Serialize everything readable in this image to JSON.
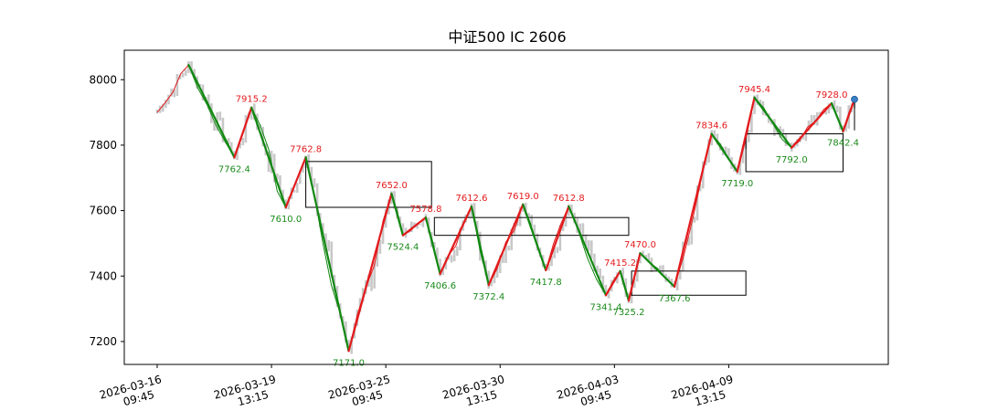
{
  "chart_data": {
    "type": "line",
    "title": "中证500 IC 2606",
    "xlabel": "",
    "ylabel": "",
    "ylim": [
      7130,
      8090
    ],
    "yticks": [
      7200,
      7400,
      7600,
      7800,
      8000
    ],
    "grid": false,
    "x_tick_labels": [
      {
        "date": "2026-03-16",
        "time": "09:45",
        "bar_index": 0
      },
      {
        "date": "2026-03-19",
        "time": "13:15",
        "bar_index": 40
      },
      {
        "date": "2026-03-25",
        "time": "09:45",
        "bar_index": 80
      },
      {
        "date": "2026-03-30",
        "time": "13:15",
        "bar_index": 120
      },
      {
        "date": "2026-04-03",
        "time": "09:45",
        "bar_index": 160
      },
      {
        "date": "2026-04-09",
        "time": "13:15",
        "bar_index": 200
      }
    ],
    "bar_count": 245,
    "colors": {
      "price": "#c8c8c8",
      "up_stroke": "#e31a1c",
      "down_stroke": "#118811",
      "box": "#000000",
      "last_point": "#3b7fc4"
    },
    "pivots": [
      {
        "idx": 11,
        "value": 8045,
        "type": "peak",
        "label": ""
      },
      {
        "idx": 27,
        "value": 7762.4,
        "type": "trough",
        "label": "7762.4"
      },
      {
        "idx": 33,
        "value": 7915.2,
        "type": "peak",
        "label": "7915.2"
      },
      {
        "idx": 45,
        "value": 7610.0,
        "type": "trough",
        "label": "7610.0"
      },
      {
        "idx": 52,
        "value": 7762.8,
        "type": "peak",
        "label": "7762.8"
      },
      {
        "idx": 67,
        "value": 7171.0,
        "type": "trough",
        "label": "7171.0"
      },
      {
        "idx": 82,
        "value": 7652.0,
        "type": "peak",
        "label": "7652.0"
      },
      {
        "idx": 86,
        "value": 7524.4,
        "type": "trough",
        "label": "7524.4"
      },
      {
        "idx": 94,
        "value": 7578.8,
        "type": "peak",
        "label": "7578.8"
      },
      {
        "idx": 99,
        "value": 7406.6,
        "type": "trough",
        "label": "7406.6"
      },
      {
        "idx": 110,
        "value": 7612.6,
        "type": "peak",
        "label": "7612.6"
      },
      {
        "idx": 116,
        "value": 7372.4,
        "type": "trough",
        "label": "7372.4"
      },
      {
        "idx": 128,
        "value": 7619.0,
        "type": "peak",
        "label": "7619.0"
      },
      {
        "idx": 136,
        "value": 7417.8,
        "type": "trough",
        "label": "7417.8"
      },
      {
        "idx": 144,
        "value": 7612.8,
        "type": "peak",
        "label": "7612.8"
      },
      {
        "idx": 157,
        "value": 7341.4,
        "type": "trough",
        "label": "7341.4"
      },
      {
        "idx": 162,
        "value": 7415.2,
        "type": "peak",
        "label": "7415.2"
      },
      {
        "idx": 165,
        "value": 7325.2,
        "type": "trough",
        "label": "7325.2"
      },
      {
        "idx": 169,
        "value": 7470.0,
        "type": "peak",
        "label": "7470.0"
      },
      {
        "idx": 181,
        "value": 7367.6,
        "type": "trough",
        "label": "7367.6"
      },
      {
        "idx": 194,
        "value": 7834.6,
        "type": "peak",
        "label": "7834.6"
      },
      {
        "idx": 203,
        "value": 7719.0,
        "type": "trough",
        "label": "7719.0"
      },
      {
        "idx": 209,
        "value": 7945.4,
        "type": "peak",
        "label": "7945.4"
      },
      {
        "idx": 222,
        "value": 7792.0,
        "type": "trough",
        "label": "7792.0"
      },
      {
        "idx": 236,
        "value": 7928.0,
        "type": "peak",
        "label": "7928.0"
      },
      {
        "idx": 240,
        "value": 7842.4,
        "type": "trough",
        "label": "7842.4"
      },
      {
        "idx": 244,
        "value": 7940,
        "type": "peak",
        "label": ""
      }
    ],
    "boxes": [
      {
        "x0": 52,
        "x1": 96,
        "y_low": 7610.0,
        "y_high": 7750.0
      },
      {
        "x0": 97,
        "x1": 165,
        "y_low": 7524.4,
        "y_high": 7578.8
      },
      {
        "x0": 166,
        "x1": 206,
        "y_low": 7341.4,
        "y_high": 7415.2
      },
      {
        "x0": 206,
        "x1": 240,
        "y_low": 7719.0,
        "y_high": 7834.6
      }
    ],
    "last_point": {
      "idx": 244,
      "value": 7940
    }
  }
}
